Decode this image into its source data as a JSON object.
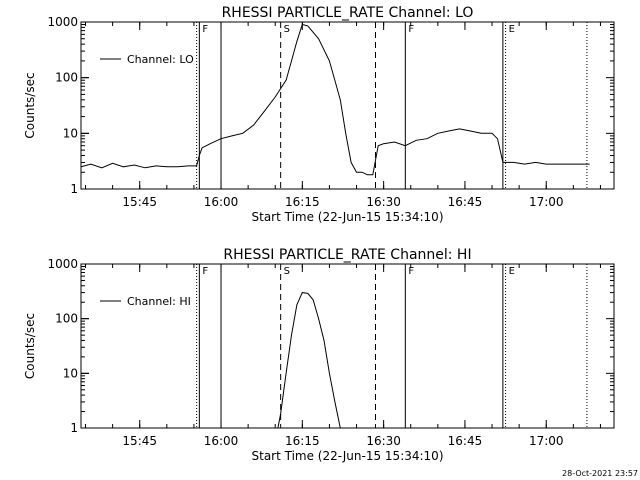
{
  "footer": {
    "timestamp": "28-Oct-2021 23:57"
  },
  "chart_data": [
    {
      "type": "line",
      "title": "RHESSI PARTICLE_RATE Channel: LO",
      "xlabel": "Start Time (22-Jun-15 15:34:10)",
      "ylabel": "Counts/sec",
      "yscale": "log",
      "ylim": [
        1,
        1000
      ],
      "xlim": [
        "15:34:10",
        "17:12:30"
      ],
      "xticks": [
        "15:45",
        "16:00",
        "16:15",
        "16:30",
        "16:45",
        "17:00"
      ],
      "yticks": [
        "1",
        "10",
        "100",
        "1000"
      ],
      "legend": "top-left",
      "series": [
        {
          "name": "Channel: LO",
          "x": [
            "15:34:10",
            "15:36:00",
            "15:38:00",
            "15:40:00",
            "15:42:00",
            "15:44:00",
            "15:46:00",
            "15:48:00",
            "15:50:00",
            "15:52:00",
            "15:54:00",
            "15:55:30",
            "15:56:00",
            "15:56:30",
            "15:58:00",
            "16:00:00",
            "16:02:00",
            "16:04:00",
            "16:06:00",
            "16:08:00",
            "16:10:00",
            "16:12:00",
            "16:13:00",
            "16:14:00",
            "16:15:00",
            "16:16:00",
            "16:18:00",
            "16:20:00",
            "16:22:00",
            "16:23:00",
            "16:24:00",
            "16:25:00",
            "16:26:00",
            "16:27:00",
            "16:28:00",
            "16:29:00",
            "16:30:00",
            "16:32:00",
            "16:34:00",
            "16:36:00",
            "16:38:00",
            "16:40:00",
            "16:42:00",
            "16:44:00",
            "16:46:00",
            "16:48:00",
            "16:50:00",
            "16:51:00",
            "16:52:00",
            "16:54:00",
            "16:56:00",
            "16:58:00",
            "17:00:00",
            "17:02:00",
            "17:04:00",
            "17:06:00",
            "17:08:00"
          ],
          "values": [
            2.5,
            2.8,
            2.4,
            2.9,
            2.5,
            2.7,
            2.4,
            2.6,
            2.5,
            2.5,
            2.6,
            2.6,
            4.0,
            5.5,
            6.5,
            8,
            9,
            10,
            14,
            25,
            45,
            90,
            200,
            450,
            900,
            850,
            500,
            200,
            40,
            10,
            3,
            2,
            2,
            1.8,
            1.8,
            6,
            6.5,
            7,
            6,
            7.5,
            8,
            10,
            11,
            12,
            11,
            10,
            10,
            8,
            3,
            3,
            2.8,
            3,
            2.8,
            2.8,
            2.8,
            2.8,
            2.8
          ]
        }
      ],
      "vlines": [
        {
          "time": "15:55:30",
          "style": "dotted",
          "label": ""
        },
        {
          "time": "15:56:00",
          "style": "solid",
          "label": "F"
        },
        {
          "time": "16:00:00",
          "style": "solid",
          "label": ""
        },
        {
          "time": "16:11:00",
          "style": "dashed",
          "label": "S"
        },
        {
          "time": "16:28:30",
          "style": "dashed",
          "label": ""
        },
        {
          "time": "16:34:00",
          "style": "solid",
          "label": "F"
        },
        {
          "time": "16:52:00",
          "style": "solid",
          "label": ""
        },
        {
          "time": "16:52:30",
          "style": "dotted",
          "label": "E"
        },
        {
          "time": "17:07:30",
          "style": "dotted",
          "label": ""
        }
      ]
    },
    {
      "type": "line",
      "title": "RHESSI PARTICLE_RATE Channel: HI",
      "xlabel": "Start Time (22-Jun-15 15:34:10)",
      "ylabel": "Counts/sec",
      "yscale": "log",
      "ylim": [
        1,
        1000
      ],
      "xlim": [
        "15:34:10",
        "17:12:30"
      ],
      "xticks": [
        "15:45",
        "16:00",
        "16:15",
        "16:30",
        "16:45",
        "17:00"
      ],
      "yticks": [
        "1",
        "10",
        "100",
        "1000"
      ],
      "legend": "top-left",
      "series": [
        {
          "name": "Channel: HI",
          "x": [
            "16:10:30",
            "16:11:00",
            "16:12:00",
            "16:13:00",
            "16:14:00",
            "16:15:00",
            "16:16:00",
            "16:17:00",
            "16:18:00",
            "16:19:00",
            "16:20:00",
            "16:21:00",
            "16:22:00"
          ],
          "values": [
            1,
            1.8,
            10,
            50,
            180,
            300,
            290,
            220,
            100,
            40,
            10,
            3,
            1
          ]
        }
      ],
      "vlines": [
        {
          "time": "15:55:30",
          "style": "dotted",
          "label": ""
        },
        {
          "time": "15:56:00",
          "style": "solid",
          "label": "F"
        },
        {
          "time": "16:00:00",
          "style": "solid",
          "label": ""
        },
        {
          "time": "16:11:00",
          "style": "dashed",
          "label": "S"
        },
        {
          "time": "16:28:30",
          "style": "dashed",
          "label": ""
        },
        {
          "time": "16:34:00",
          "style": "solid",
          "label": "F"
        },
        {
          "time": "16:52:00",
          "style": "solid",
          "label": ""
        },
        {
          "time": "16:52:30",
          "style": "dotted",
          "label": "E"
        },
        {
          "time": "17:07:30",
          "style": "dotted",
          "label": ""
        }
      ]
    }
  ]
}
